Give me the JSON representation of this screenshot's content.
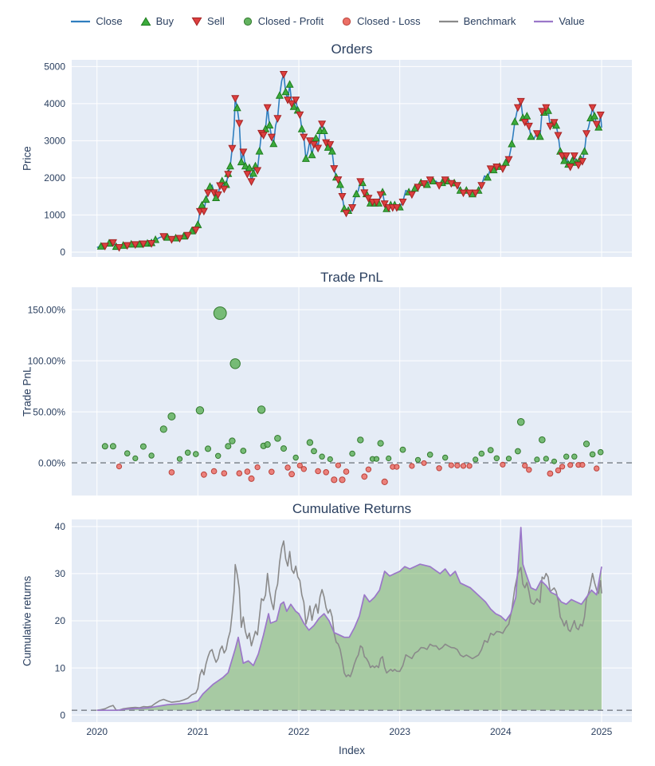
{
  "colors": {
    "paper_bg": "#ffffff",
    "plot_bg": "#e5ecf6",
    "grid": "#ffffff",
    "font": "#2a3f5f",
    "dash_line": "#878d96",
    "close": "#2f7ebf",
    "buy_fill": "#3cab3c",
    "buy_stroke": "#1e7d1e",
    "sell_fill": "#dd3f3f",
    "sell_stroke": "#a32222",
    "profit_fill": "#63b35f",
    "profit_stroke": "#337a2f",
    "loss_fill": "#ec6f66",
    "loss_stroke": "#bb423a",
    "benchmark": "#8a8a8a",
    "value": "#9b77c9",
    "value_area": "rgba(106,168,79,0.5)"
  },
  "legend": {
    "items": [
      {
        "label": "Close",
        "glyph": "line",
        "color": "#2f7ebf"
      },
      {
        "label": "Buy",
        "glyph": "triangle-up",
        "fill": "#3cab3c",
        "stroke": "#1e7d1e"
      },
      {
        "label": "Sell",
        "glyph": "triangle-down",
        "fill": "#dd3f3f",
        "stroke": "#a32222"
      },
      {
        "label": "Closed - Profit",
        "glyph": "circle",
        "fill": "#63b35f",
        "stroke": "#337a2f"
      },
      {
        "label": "Closed - Loss",
        "glyph": "circle",
        "fill": "#ec6f66",
        "stroke": "#bb423a"
      },
      {
        "label": "Benchmark",
        "glyph": "line",
        "color": "#8a8a8a"
      },
      {
        "label": "Value",
        "glyph": "line",
        "color": "#9b77c9"
      }
    ]
  },
  "xaxis": {
    "label": "Index",
    "ticks": [
      2020,
      2021,
      2022,
      2023,
      2024,
      2025
    ],
    "ticklabels": [
      "2020",
      "2021",
      "2022",
      "2023",
      "2024",
      "2025"
    ],
    "lim": [
      2019.75,
      2025.3
    ]
  },
  "chart_data": [
    {
      "type": "line",
      "title": "Orders",
      "ylabel": "Price",
      "ylim": [
        -130,
        5180
      ],
      "yticks": [
        0,
        1000,
        2000,
        3000,
        4000,
        5000
      ],
      "yticklabels": [
        "0",
        "1000",
        "2000",
        "3000",
        "4000",
        "5000"
      ],
      "series": [
        {
          "name": "Close",
          "color": "#2f7ebf",
          "x": [
            2020.0,
            2020.04,
            2020.08,
            2020.12,
            2020.16,
            2020.19,
            2020.22,
            2020.26,
            2020.3,
            2020.34,
            2020.38,
            2020.42,
            2020.46,
            2020.5,
            2020.54,
            2020.58,
            2020.62,
            2020.66,
            2020.7,
            2020.74,
            2020.78,
            2020.82,
            2020.86,
            2020.9,
            2020.94,
            2020.98,
            2021.0,
            2021.02,
            2021.04,
            2021.06,
            2021.08,
            2021.1,
            2021.12,
            2021.14,
            2021.16,
            2021.18,
            2021.2,
            2021.22,
            2021.24,
            2021.26,
            2021.28,
            2021.3,
            2021.32,
            2021.34,
            2021.36,
            2021.37,
            2021.39,
            2021.41,
            2021.43,
            2021.45,
            2021.47,
            2021.49,
            2021.51,
            2021.53,
            2021.55,
            2021.57,
            2021.59,
            2021.61,
            2021.63,
            2021.65,
            2021.67,
            2021.69,
            2021.71,
            2021.73,
            2021.75,
            2021.77,
            2021.79,
            2021.81,
            2021.83,
            2021.85,
            2021.87,
            2021.89,
            2021.91,
            2021.93,
            2021.95,
            2021.97,
            2021.99,
            2022.01,
            2022.03,
            2022.05,
            2022.07,
            2022.09,
            2022.11,
            2022.13,
            2022.15,
            2022.17,
            2022.19,
            2022.21,
            2022.23,
            2022.25,
            2022.27,
            2022.29,
            2022.31,
            2022.33,
            2022.35,
            2022.37,
            2022.39,
            2022.41,
            2022.43,
            2022.45,
            2022.47,
            2022.49,
            2022.51,
            2022.53,
            2022.55,
            2022.57,
            2022.59,
            2022.61,
            2022.63,
            2022.65,
            2022.67,
            2022.69,
            2022.71,
            2022.73,
            2022.75,
            2022.77,
            2022.79,
            2022.81,
            2022.83,
            2022.85,
            2022.87,
            2022.89,
            2022.91,
            2022.93,
            2022.95,
            2022.97,
            2023.0,
            2023.03,
            2023.06,
            2023.09,
            2023.12,
            2023.15,
            2023.18,
            2023.21,
            2023.24,
            2023.27,
            2023.3,
            2023.33,
            2023.36,
            2023.39,
            2023.42,
            2023.45,
            2023.48,
            2023.51,
            2023.54,
            2023.57,
            2023.6,
            2023.63,
            2023.66,
            2023.69,
            2023.72,
            2023.75,
            2023.78,
            2023.81,
            2023.84,
            2023.87,
            2023.9,
            2023.93,
            2023.96,
            2023.99,
            2024.02,
            2024.05,
            2024.08,
            2024.11,
            2024.14,
            2024.17,
            2024.2,
            2024.22,
            2024.24,
            2024.26,
            2024.28,
            2024.3,
            2024.33,
            2024.36,
            2024.39,
            2024.41,
            2024.43,
            2024.45,
            2024.47,
            2024.49,
            2024.51,
            2024.53,
            2024.55,
            2024.57,
            2024.59,
            2024.61,
            2024.63,
            2024.65,
            2024.67,
            2024.69,
            2024.71,
            2024.73,
            2024.75,
            2024.77,
            2024.79,
            2024.81,
            2024.83,
            2024.85,
            2024.87,
            2024.89,
            2024.91,
            2024.93,
            2024.95,
            2024.97,
            2024.99,
            2025.0
          ],
          "y": [
            130,
            148,
            172,
            228,
            265,
            140,
            135,
            172,
            188,
            203,
            212,
            200,
            232,
            226,
            242,
            325,
            392,
            432,
            388,
            352,
            368,
            382,
            420,
            462,
            560,
            608,
            730,
            1105,
            1255,
            1110,
            1410,
            1605,
            1755,
            1805,
            1610,
            1455,
            1555,
            1800,
            1905,
            1710,
            1810,
            2105,
            2310,
            2805,
            3420,
            4150,
            3880,
            3480,
            2420,
            2705,
            2310,
            2110,
            2260,
            1910,
            2110,
            2310,
            2210,
            2710,
            3210,
            3160,
            3310,
            3905,
            3410,
            3110,
            2910,
            3410,
            3610,
            4210,
            4610,
            4800,
            4310,
            4110,
            4510,
            4010,
            3910,
            4110,
            3810,
            3710,
            3310,
            3110,
            2510,
            2710,
            3010,
            2610,
            2910,
            3060,
            2810,
            3260,
            3460,
            3260,
            2960,
            2810,
            2910,
            2710,
            2260,
            2010,
            1960,
            1810,
            1510,
            1160,
            1060,
            1110,
            1060,
            1210,
            1410,
            1560,
            1660,
            1910,
            1860,
            1610,
            1560,
            1460,
            1310,
            1360,
            1310,
            1360,
            1310,
            1560,
            1610,
            1310,
            1160,
            1210,
            1260,
            1210,
            1260,
            1210,
            1205,
            1360,
            1660,
            1610,
            1560,
            1710,
            1760,
            1860,
            1855,
            1810,
            1955,
            1905,
            1910,
            1805,
            1860,
            1955,
            1905,
            1860,
            1855,
            1805,
            1655,
            1605,
            1655,
            1605,
            1555,
            1605,
            1655,
            1805,
            2055,
            2005,
            2255,
            2205,
            2305,
            2295,
            2255,
            2405,
            2505,
            2905,
            3505,
            3905,
            4070,
            3610,
            3510,
            3655,
            3405,
            3105,
            3055,
            3205,
            3105,
            3805,
            3755,
            3905,
            3805,
            3405,
            3455,
            3505,
            3405,
            3155,
            2705,
            2605,
            2455,
            2605,
            2355,
            2305,
            2455,
            2605,
            2405,
            2355,
            2505,
            2455,
            2705,
            3205,
            3355,
            3605,
            3905,
            3655,
            3455,
            3355,
            3705,
            3355
          ]
        }
      ],
      "trades_note": "pairs of [buyIndex, sellIndex] into the Close series; Buy/Sell markers sit on the Close line at those indices",
      "trades": [
        [
          1,
          2
        ],
        [
          3,
          4
        ],
        [
          5,
          6
        ],
        [
          7,
          8
        ],
        [
          9,
          10
        ],
        [
          11,
          12
        ],
        [
          13,
          14
        ],
        [
          15,
          17
        ],
        [
          14,
          19
        ],
        [
          18,
          19
        ],
        [
          20,
          21
        ],
        [
          22,
          23
        ],
        [
          24,
          25
        ],
        [
          26,
          27
        ],
        [
          28,
          29
        ],
        [
          26,
          37
        ],
        [
          30,
          31
        ],
        [
          32,
          34
        ],
        [
          35,
          36
        ],
        [
          38,
          39
        ],
        [
          40,
          41
        ],
        [
          41,
          45
        ],
        [
          42,
          43
        ],
        [
          46,
          47
        ],
        [
          48,
          49
        ],
        [
          50,
          51
        ],
        [
          52,
          53
        ],
        [
          54,
          58
        ],
        [
          55,
          56
        ],
        [
          57,
          59
        ],
        [
          60,
          61
        ],
        [
          62,
          63
        ],
        [
          64,
          66
        ],
        [
          67,
          69
        ],
        [
          70,
          71
        ],
        [
          72,
          73
        ],
        [
          74,
          75
        ],
        [
          76,
          77
        ],
        [
          78,
          79
        ],
        [
          80,
          82
        ],
        [
          83,
          84
        ],
        [
          85,
          86
        ],
        [
          87,
          88
        ],
        [
          89,
          90
        ],
        [
          91,
          92
        ],
        [
          93,
          94
        ],
        [
          95,
          96
        ],
        [
          97,
          98
        ],
        [
          99,
          100
        ],
        [
          101,
          103
        ],
        [
          105,
          107
        ],
        [
          108,
          109
        ],
        [
          110,
          111
        ],
        [
          112,
          113
        ],
        [
          114,
          115
        ],
        [
          116,
          117
        ],
        [
          118,
          119
        ],
        [
          120,
          121
        ],
        [
          122,
          123
        ],
        [
          124,
          125
        ],
        [
          126,
          127
        ],
        [
          129,
          130
        ],
        [
          131,
          132
        ],
        [
          133,
          134
        ],
        [
          135,
          136
        ],
        [
          137,
          139
        ],
        [
          140,
          141
        ],
        [
          142,
          143
        ],
        [
          144,
          145
        ],
        [
          146,
          147
        ],
        [
          148,
          149
        ],
        [
          150,
          151
        ],
        [
          152,
          153
        ],
        [
          155,
          156
        ],
        [
          157,
          158
        ],
        [
          159,
          160
        ],
        [
          161,
          162
        ],
        [
          163,
          166
        ],
        [
          164,
          165
        ],
        [
          167,
          168
        ],
        [
          169,
          170
        ],
        [
          171,
          173
        ],
        [
          174,
          175
        ],
        [
          176,
          177
        ],
        [
          178,
          179
        ],
        [
          180,
          181
        ],
        [
          182,
          183
        ],
        [
          184,
          185
        ],
        [
          186,
          187
        ],
        [
          188,
          189
        ],
        [
          190,
          191
        ],
        [
          192,
          193
        ],
        [
          194,
          195
        ],
        [
          196,
          197
        ],
        [
          199,
          200
        ],
        [
          201,
          202
        ],
        [
          203,
          204
        ]
      ]
    },
    {
      "type": "scatter",
      "title": "Trade PnL",
      "ylabel": "Trade PnL",
      "ylim": [
        -32,
        172
      ],
      "yticks": [
        0,
        50,
        100,
        150
      ],
      "yticklabels": [
        "0.00%",
        "50.00%",
        "100.00%",
        "150.00%"
      ],
      "zeroline": 0,
      "points_note": "each closed trade plotted at x = sell time, y = (sellPrice-buyPrice)/buyPrice in %; green = profit, red = loss; dot size scales with |PnL|"
    },
    {
      "type": "line",
      "title": "Cumulative Returns",
      "ylabel": "Cumulative returns",
      "xlabel": "Index",
      "ylim": [
        -1.5,
        41.5
      ],
      "yticks": [
        0,
        10,
        20,
        30,
        40
      ],
      "yticklabels": [
        "0",
        "10",
        "20",
        "30",
        "40"
      ],
      "baseline_dash": 1,
      "series": [
        {
          "name": "Benchmark",
          "color": "#8a8a8a",
          "derived": "Close / Close[0]"
        },
        {
          "name": "Value",
          "color": "#9b77c9",
          "area_fill": "rgba(106,168,79,0.5)",
          "area_baseline": 1,
          "x": [
            2020.0,
            2020.2,
            2020.3,
            2020.5,
            2020.7,
            2020.9,
            2021.0,
            2021.05,
            2021.15,
            2021.25,
            2021.3,
            2021.37,
            2021.4,
            2021.45,
            2021.5,
            2021.55,
            2021.6,
            2021.65,
            2021.7,
            2021.72,
            2021.78,
            2021.82,
            2021.85,
            2021.88,
            2021.92,
            2021.97,
            2022.0,
            2022.05,
            2022.1,
            2022.15,
            2022.2,
            2022.25,
            2022.3,
            2022.35,
            2022.4,
            2022.45,
            2022.5,
            2022.55,
            2022.6,
            2022.65,
            2022.7,
            2022.75,
            2022.8,
            2022.85,
            2022.9,
            2022.95,
            2023.0,
            2023.05,
            2023.1,
            2023.2,
            2023.3,
            2023.4,
            2023.45,
            2023.5,
            2023.55,
            2023.6,
            2023.7,
            2023.75,
            2023.8,
            2023.85,
            2023.9,
            2023.95,
            2024.0,
            2024.05,
            2024.1,
            2024.15,
            2024.2,
            2024.22,
            2024.25,
            2024.3,
            2024.35,
            2024.4,
            2024.45,
            2024.5,
            2024.55,
            2024.6,
            2024.65,
            2024.7,
            2024.75,
            2024.8,
            2024.85,
            2024.9,
            2024.95,
            2025.0
          ],
          "y": [
            1.0,
            1.0,
            1.3,
            1.5,
            2.2,
            2.5,
            3.0,
            4.5,
            6.5,
            8.0,
            9.0,
            14.0,
            16.5,
            11.0,
            11.5,
            10.5,
            13.0,
            17.0,
            21.5,
            19.5,
            20.0,
            23.5,
            24.0,
            22.0,
            23.5,
            22.0,
            21.5,
            19.5,
            18.0,
            19.0,
            20.5,
            21.5,
            20.0,
            17.5,
            17.0,
            16.5,
            16.5,
            18.5,
            21.0,
            25.5,
            24.0,
            25.0,
            26.5,
            30.5,
            29.5,
            30.0,
            30.5,
            31.5,
            31.0,
            32.0,
            31.5,
            30.0,
            31.0,
            29.5,
            30.5,
            28.0,
            27.0,
            26.0,
            25.0,
            24.0,
            22.5,
            21.5,
            21.0,
            20.0,
            21.5,
            25.0,
            39.8,
            32.0,
            30.0,
            27.0,
            26.5,
            28.5,
            27.5,
            26.0,
            25.5,
            24.0,
            23.5,
            24.5,
            24.0,
            23.5,
            25.0,
            26.5,
            25.5,
            31.5
          ]
        }
      ]
    }
  ]
}
